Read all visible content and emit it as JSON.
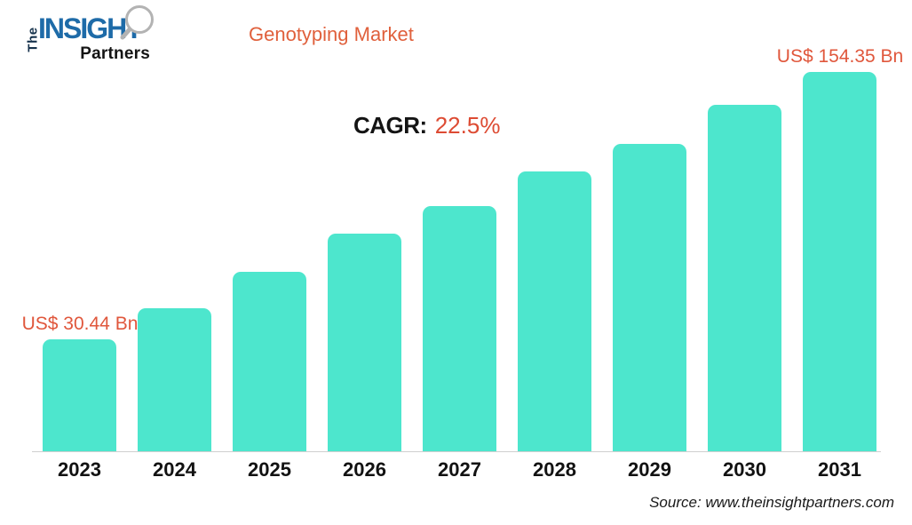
{
  "logo": {
    "the": "The",
    "insight": "INSIGHT",
    "partners": "Partners"
  },
  "header": {
    "title": "Genotyping Market"
  },
  "annotation": {
    "cagr_label": "CAGR:",
    "cagr_value": "22.5%"
  },
  "footer": {
    "source": "Source: www.theinsightpartners.com"
  },
  "colors": {
    "bar": "#4de6cd",
    "accent_orange": "#e0573c",
    "cagr_red": "#dd4b33",
    "logo_blue": "#1e6ba8",
    "logo_dark": "#16324c",
    "text_black": "#121212",
    "axis_line": "#cfcfcf"
  },
  "chart_data": {
    "type": "bar",
    "title": "Genotyping Market",
    "categories": [
      "2023",
      "2024",
      "2025",
      "2026",
      "2027",
      "2028",
      "2029",
      "2030",
      "2031"
    ],
    "values": [
      30.44,
      44.9,
      61.7,
      79.4,
      92.2,
      108.2,
      121.0,
      139.1,
      154.35
    ],
    "unit": "US$ Bn",
    "data_labels": {
      "2023": "US$ 30.44 Bn",
      "2031": "US$ 154.35 Bn"
    },
    "labeled_values": {
      "2023": 30.44,
      "2031": 154.35
    },
    "cagr": "22.5%",
    "xlabel": "",
    "ylabel": "",
    "ylim": [
      0,
      160
    ],
    "grid": false,
    "legend": false,
    "note": "Only the 2023 and 2031 bars carry data labels; intermediate values estimated from bar heights"
  }
}
